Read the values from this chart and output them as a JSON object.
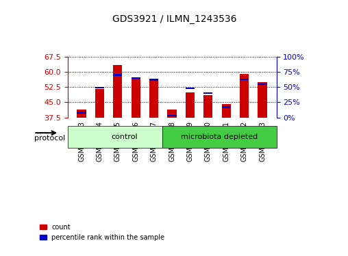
{
  "title": "GDS3921 / ILMN_1243536",
  "samples": [
    "GSM561883",
    "GSM561884",
    "GSM561885",
    "GSM561886",
    "GSM561887",
    "GSM561888",
    "GSM561889",
    "GSM561890",
    "GSM561891",
    "GSM561892",
    "GSM561893"
  ],
  "count_values": [
    41.5,
    51.5,
    63.5,
    56.5,
    55.5,
    41.5,
    50.0,
    48.5,
    44.0,
    59.0,
    55.0
  ],
  "percentile_values": [
    8,
    49,
    70,
    65,
    62,
    3,
    48,
    40,
    17,
    63,
    55
  ],
  "ylim_left": [
    37.5,
    67.5
  ],
  "ylim_right": [
    0,
    100
  ],
  "yticks_left": [
    37.5,
    45.0,
    52.5,
    60.0,
    67.5
  ],
  "yticks_right": [
    0,
    25,
    50,
    75,
    100
  ],
  "bar_color": "#cc0000",
  "marker_color": "#0000cc",
  "baseline": 37.5,
  "groups": [
    {
      "label": "control",
      "start": 0,
      "end": 5,
      "color": "#ccffcc"
    },
    {
      "label": "microbiota depleted",
      "start": 5,
      "end": 10,
      "color": "#44cc44"
    }
  ],
  "protocol_label": "protocol",
  "legend_entries": [
    "count",
    "percentile rank within the sample"
  ],
  "grid_color": "#000000",
  "bar_width": 0.5
}
